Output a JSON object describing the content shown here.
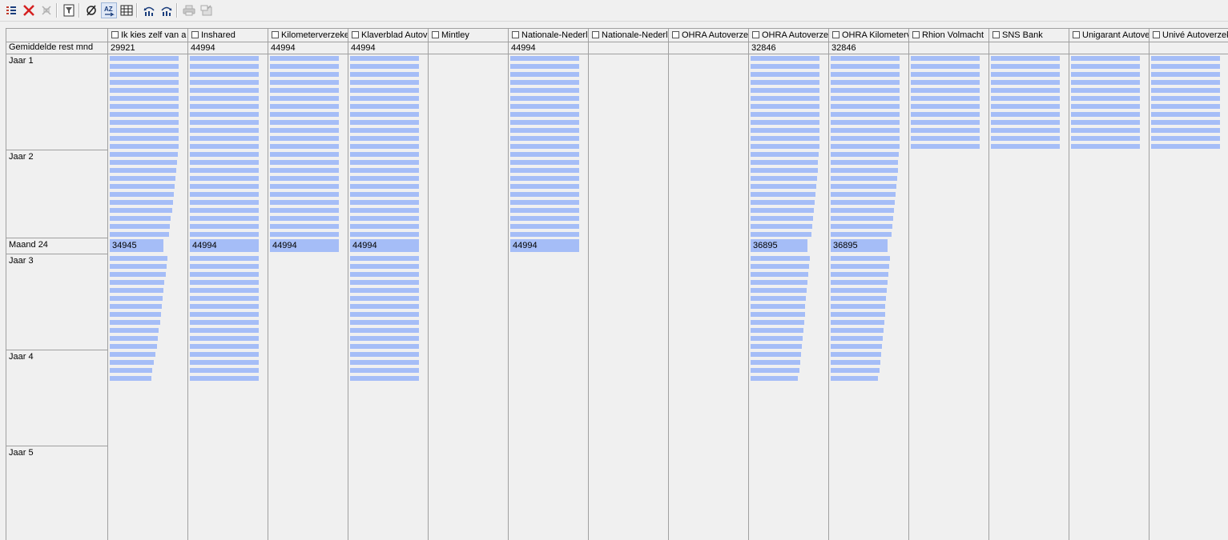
{
  "colors": {
    "bar": "#a5bdf7",
    "grid_line": "#a0a0a0",
    "background": "#f0f0f0"
  },
  "toolbar": {
    "buttons": [
      {
        "name": "list-view-icon",
        "enabled": true
      },
      {
        "name": "delete-icon",
        "enabled": true
      },
      {
        "name": "split-columns-icon",
        "enabled": false
      },
      {
        "name": "filter-column-icon",
        "enabled": true
      },
      {
        "name": "empty-set-icon",
        "enabled": true
      },
      {
        "name": "sort-az-icon",
        "enabled": true,
        "pressed": true
      },
      {
        "name": "table-grid-icon",
        "enabled": true
      },
      {
        "name": "chart-back-icon",
        "enabled": true
      },
      {
        "name": "chart-forward-icon",
        "enabled": true
      },
      {
        "name": "print-icon",
        "enabled": false
      },
      {
        "name": "export-icon",
        "enabled": false
      }
    ]
  },
  "row_header_label": "Gemiddelde rest mnd",
  "row_labels": [
    "Jaar 1",
    "Jaar 2",
    "Maand 24",
    "Jaar 3",
    "Jaar 4",
    "Jaar 5"
  ],
  "columns": [
    {
      "name": "Ik kies zelf van a",
      "avg": "29921",
      "month24": "34945",
      "bars": [
        86,
        86,
        86,
        86,
        86,
        86,
        86,
        86,
        86,
        86,
        86,
        86,
        85,
        84,
        83,
        82,
        81,
        80,
        79,
        78,
        76,
        75,
        74,
        73,
        72,
        71,
        70,
        68,
        67,
        66,
        65,
        64,
        63,
        61,
        60,
        59,
        57,
        55,
        53,
        52
      ]
    },
    {
      "name": "Inshared",
      "avg": "44994",
      "month24": "44994",
      "bars": [
        86,
        86,
        86,
        86,
        86,
        86,
        86,
        86,
        86,
        86,
        86,
        86,
        86,
        86,
        86,
        86,
        86,
        86,
        86,
        86,
        86,
        86,
        86,
        86,
        86,
        86,
        86,
        86,
        86,
        86,
        86,
        86,
        86,
        86,
        86,
        86,
        86,
        86,
        86,
        86
      ]
    },
    {
      "name": "Kilometerverzeke",
      "avg": "44994",
      "month24": "44994",
      "bars": [
        86,
        86,
        86,
        86,
        86,
        86,
        86,
        86,
        86,
        86,
        86,
        86,
        86,
        86,
        86,
        86,
        86,
        86,
        86,
        86,
        86,
        86,
        86,
        86
      ]
    },
    {
      "name": "Klaverblad Autov",
      "avg": "44994",
      "month24": "44994",
      "bars": [
        86,
        86,
        86,
        86,
        86,
        86,
        86,
        86,
        86,
        86,
        86,
        86,
        86,
        86,
        86,
        86,
        86,
        86,
        86,
        86,
        86,
        86,
        86,
        86,
        86,
        86,
        86,
        86,
        86,
        86,
        86,
        86,
        86,
        86,
        86,
        86,
        86,
        86,
        86,
        86
      ]
    },
    {
      "name": "Mintley",
      "avg": "",
      "month24": "",
      "bars": []
    },
    {
      "name": "Nationale-Nederl",
      "avg": "44994",
      "month24": "44994",
      "bars": [
        86,
        86,
        86,
        86,
        86,
        86,
        86,
        86,
        86,
        86,
        86,
        86,
        86,
        86,
        86,
        86,
        86,
        86,
        86,
        86,
        86,
        86,
        86,
        86
      ]
    },
    {
      "name": "Nationale-Nederl",
      "avg": "",
      "month24": "",
      "bars": []
    },
    {
      "name": "OHRA Autoverze",
      "avg": "",
      "month24": "",
      "bars": []
    },
    {
      "name": "OHRA Autoverze",
      "avg": "32846",
      "month24": "36895",
      "bars": [
        86,
        86,
        86,
        86,
        86,
        86,
        86,
        86,
        86,
        86,
        86,
        86,
        85,
        84,
        84,
        83,
        82,
        81,
        80,
        79,
        78,
        77,
        76,
        75,
        74,
        73,
        72,
        71,
        70,
        69,
        68,
        68,
        67,
        66,
        65,
        64,
        63,
        62,
        61,
        59
      ]
    },
    {
      "name": "OHRA Kilometerv",
      "avg": "32846",
      "month24": "36895",
      "bars": [
        86,
        86,
        86,
        86,
        86,
        86,
        86,
        86,
        86,
        86,
        86,
        86,
        85,
        84,
        84,
        83,
        82,
        81,
        80,
        79,
        78,
        77,
        76,
        75,
        74,
        73,
        72,
        71,
        70,
        69,
        68,
        68,
        67,
        66,
        65,
        64,
        63,
        62,
        61,
        59
      ]
    },
    {
      "name": "Rhion Volmacht",
      "avg": "",
      "month24": "",
      "bars": [
        86,
        86,
        86,
        86,
        86,
        86,
        86,
        86,
        86,
        86,
        86,
        86
      ]
    },
    {
      "name": "SNS Bank",
      "avg": "",
      "month24": "",
      "bars": [
        86,
        86,
        86,
        86,
        86,
        86,
        86,
        86,
        86,
        86,
        86,
        86
      ]
    },
    {
      "name": "Unigarant Autove",
      "avg": "",
      "month24": "",
      "bars": [
        86,
        86,
        86,
        86,
        86,
        86,
        86,
        86,
        86,
        86,
        86,
        86
      ]
    },
    {
      "name": "Univé Autoverzek",
      "avg": "",
      "month24": "",
      "bars": [
        86,
        86,
        86,
        86,
        86,
        86,
        86,
        86,
        86,
        86,
        86,
        86
      ]
    }
  ]
}
